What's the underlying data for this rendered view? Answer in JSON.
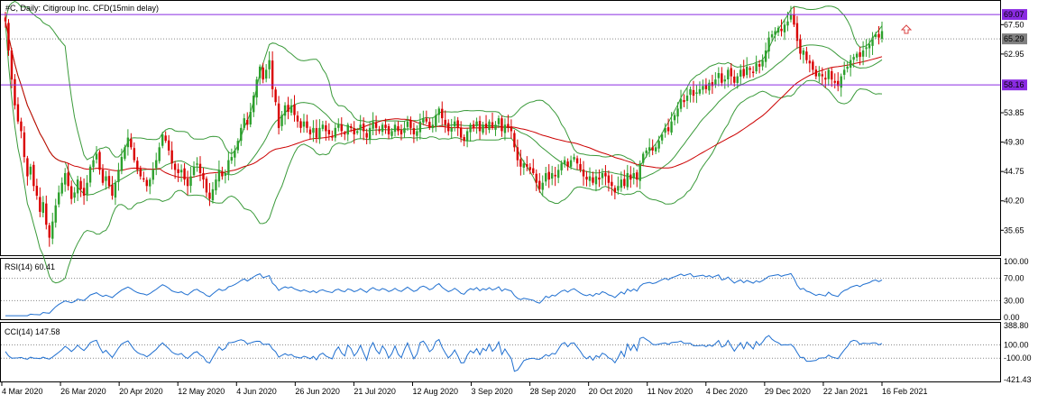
{
  "header": {
    "title": "#C, Daily:  Citigroup Inc. CFD(15min delay)"
  },
  "colors": {
    "bull": "#2ca02c",
    "bear": "#d90000",
    "band": "#3a9a3a",
    "ma": "#cc0000",
    "hline": "#8a2be2",
    "indicator": "#1f6fd0",
    "level_dotted": "#888888",
    "arrow": "#d94040"
  },
  "price_panel": {
    "ylim": [
      32.2,
      70.2
    ],
    "ticks": [
      "67.50",
      "62.95",
      "53.85",
      "49.30",
      "44.75",
      "40.20",
      "35.65"
    ],
    "levels": [
      {
        "value": 69.07,
        "label": "69.07",
        "kind": "hline",
        "label_bg": "#8a2be2"
      },
      {
        "value": 65.29,
        "label": "65.29",
        "kind": "dotted",
        "label_bg": "#808080"
      },
      {
        "value": 58.16,
        "label": "58.16",
        "kind": "hline",
        "label_bg": "#8a2be2"
      }
    ],
    "arrow": "up-arrow"
  },
  "rsi_panel": {
    "label": "RSI(14) 60.41",
    "ylim": [
      0,
      100
    ],
    "ticks": [
      "100.00",
      "70.00",
      "30.00",
      "0.00"
    ]
  },
  "cci_panel": {
    "label": "CCI(14) 147.58",
    "ylim": [
      -421.43,
      388.8
    ],
    "ticks": [
      "388.80",
      "100.00",
      "-100.00",
      "-421.43"
    ]
  },
  "x_axis": {
    "labels": [
      "4 Mar 2020",
      "26 Mar 2020",
      "20 Apr 2020",
      "12 May 2020",
      "4 Jun 2020",
      "26 Jun 2020",
      "21 Jul 2020",
      "12 Aug 2020",
      "3 Sep 2020",
      "28 Sep 2020",
      "20 Oct 2020",
      "11 Nov 2020",
      "4 Dec 2020",
      "29 Dec 2020",
      "22 Jan 2021",
      "16 Feb 2021"
    ]
  },
  "chart_data": {
    "type": "candlestick",
    "series": [
      {
        "name": "#C",
        "closes": [
          68.0,
          63.5,
          59.0,
          55.0,
          52.5,
          51.0,
          47.0,
          44.0,
          45.5,
          42.5,
          41.0,
          38.5,
          40.0,
          36.5,
          34.5,
          37.0,
          39.5,
          41.5,
          43.0,
          44.5,
          42.5,
          40.5,
          41.5,
          43.5,
          42.0,
          41.0,
          43.0,
          45.5,
          46.5,
          47.5,
          45.0,
          43.0,
          44.0,
          42.5,
          41.0,
          43.0,
          45.0,
          47.0,
          48.5,
          50.0,
          48.5,
          46.5,
          45.0,
          44.0,
          43.5,
          42.5,
          43.5,
          45.0,
          46.5,
          48.5,
          50.5,
          49.5,
          48.0,
          46.0,
          45.0,
          44.5,
          45.0,
          43.5,
          42.5,
          44.0,
          45.5,
          46.0,
          44.5,
          43.5,
          41.5,
          40.5,
          42.0,
          43.5,
          45.0,
          44.0,
          44.5,
          46.5,
          47.0,
          48.0,
          49.5,
          51.5,
          53.0,
          52.0,
          54.0,
          56.5,
          59.0,
          61.0,
          59.0,
          60.5,
          62.0,
          57.5,
          55.5,
          51.5,
          53.5,
          55.0,
          54.0,
          55.0,
          53.5,
          52.5,
          51.5,
          52.5,
          51.5,
          50.5,
          51.5,
          50.0,
          51.5,
          52.0,
          51.0,
          50.5,
          50.0,
          51.5,
          52.0,
          51.0,
          50.5,
          52.0,
          51.5,
          50.5,
          51.0,
          52.0,
          51.0,
          50.0,
          51.5,
          52.5,
          51.5,
          51.0,
          52.0,
          51.5,
          50.5,
          51.0,
          52.0,
          51.0,
          50.5,
          51.5,
          52.5,
          51.5,
          50.5,
          51.0,
          52.5,
          53.0,
          52.5,
          51.5,
          52.0,
          53.5,
          54.5,
          53.0,
          52.0,
          51.0,
          51.5,
          52.5,
          51.5,
          50.0,
          49.5,
          51.0,
          52.0,
          51.5,
          52.5,
          51.0,
          52.0,
          51.5,
          52.5,
          51.5,
          52.0,
          53.0,
          51.0,
          52.0,
          51.5,
          51.0,
          48.5,
          46.5,
          45.5,
          46.0,
          45.5,
          45.0,
          44.5,
          43.0,
          42.0,
          43.0,
          44.5,
          43.5,
          44.5,
          44.0,
          45.0,
          46.0,
          46.5,
          45.5,
          46.5,
          47.0,
          46.0,
          45.0,
          44.0,
          43.5,
          44.0,
          43.0,
          44.0,
          43.5,
          44.5,
          44.0,
          43.0,
          42.5,
          41.5,
          42.5,
          43.5,
          42.5,
          44.5,
          43.5,
          44.5,
          43.5,
          46.0,
          47.5,
          48.0,
          48.5,
          48.0,
          48.5,
          49.5,
          50.5,
          51.5,
          51.0,
          52.5,
          53.5,
          54.5,
          56.0,
          55.5,
          56.5,
          57.5,
          56.5,
          57.0,
          57.5,
          58.0,
          57.5,
          58.5,
          58.0,
          59.0,
          60.0,
          58.5,
          59.0,
          60.5,
          59.5,
          58.5,
          59.5,
          60.5,
          59.5,
          61.0,
          60.5,
          60.0,
          61.5,
          61.0,
          62.0,
          63.5,
          65.5,
          66.0,
          66.5,
          67.0,
          66.5,
          67.5,
          68.0,
          69.0,
          67.5,
          65.0,
          63.0,
          63.5,
          62.0,
          61.5,
          60.5,
          59.5,
          60.0,
          59.5,
          59.0,
          60.5,
          59.0,
          58.5,
          58.0,
          59.5,
          60.5,
          61.0,
          62.0,
          62.5,
          63.0,
          62.5,
          63.5,
          64.0,
          64.5,
          65.5,
          66.0,
          65.5,
          66.5
        ]
      },
      {
        "name": "MA(50)",
        "role": "moving-average"
      },
      {
        "name": "Bollinger Bands(20,2)",
        "role": "bands"
      }
    ]
  }
}
